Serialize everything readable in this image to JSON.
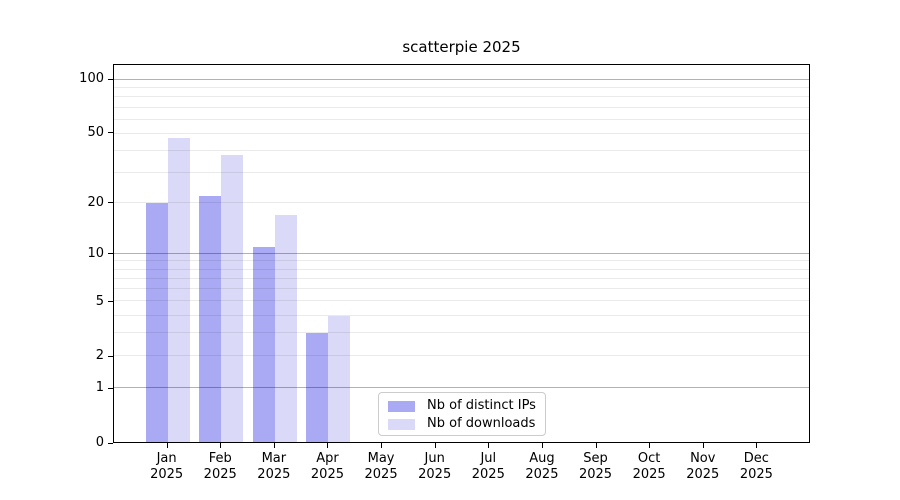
{
  "chart_data": {
    "type": "bar",
    "title": "scatterpie 2025",
    "categories": [
      {
        "month": "Jan",
        "year": "2025"
      },
      {
        "month": "Feb",
        "year": "2025"
      },
      {
        "month": "Mar",
        "year": "2025"
      },
      {
        "month": "Apr",
        "year": "2025"
      },
      {
        "month": "May",
        "year": "2025"
      },
      {
        "month": "Jun",
        "year": "2025"
      },
      {
        "month": "Jul",
        "year": "2025"
      },
      {
        "month": "Aug",
        "year": "2025"
      },
      {
        "month": "Sep",
        "year": "2025"
      },
      {
        "month": "Oct",
        "year": "2025"
      },
      {
        "month": "Nov",
        "year": "2025"
      },
      {
        "month": "Dec",
        "year": "2025"
      }
    ],
    "series": [
      {
        "name": "Nb of distinct IPs",
        "color": "#a9a9f4",
        "values": [
          20,
          22,
          11,
          3,
          0,
          0,
          0,
          0,
          0,
          0,
          0,
          0
        ]
      },
      {
        "name": "Nb of downloads",
        "color": "#dadaf8",
        "values": [
          47,
          38,
          17,
          4,
          0,
          0,
          0,
          0,
          0,
          0,
          0,
          0
        ]
      }
    ],
    "xlabel": "",
    "ylabel": "",
    "yscale": "log1p",
    "ylim": [
      0,
      121
    ],
    "yticks": [
      {
        "v": 100,
        "label": "100"
      },
      {
        "v": 50,
        "label": "50"
      },
      {
        "v": 20,
        "label": "20"
      },
      {
        "v": 10,
        "label": "10"
      },
      {
        "v": 5,
        "label": "5"
      },
      {
        "v": 2,
        "label": "2"
      },
      {
        "v": 1,
        "label": "1"
      },
      {
        "v": 0,
        "label": "0"
      }
    ],
    "major_grid_values": [
      1,
      10,
      100
    ],
    "minor_grid_values": [
      2,
      3,
      4,
      5,
      6,
      7,
      8,
      9,
      20,
      30,
      40,
      50,
      60,
      70,
      80,
      90
    ],
    "grid": true,
    "legend_position": "lower-center",
    "colors": {
      "major_grid": "#b2b2b2",
      "minor_grid": "#eaeaea",
      "axis": "#000000",
      "background": "#ffffff"
    }
  }
}
